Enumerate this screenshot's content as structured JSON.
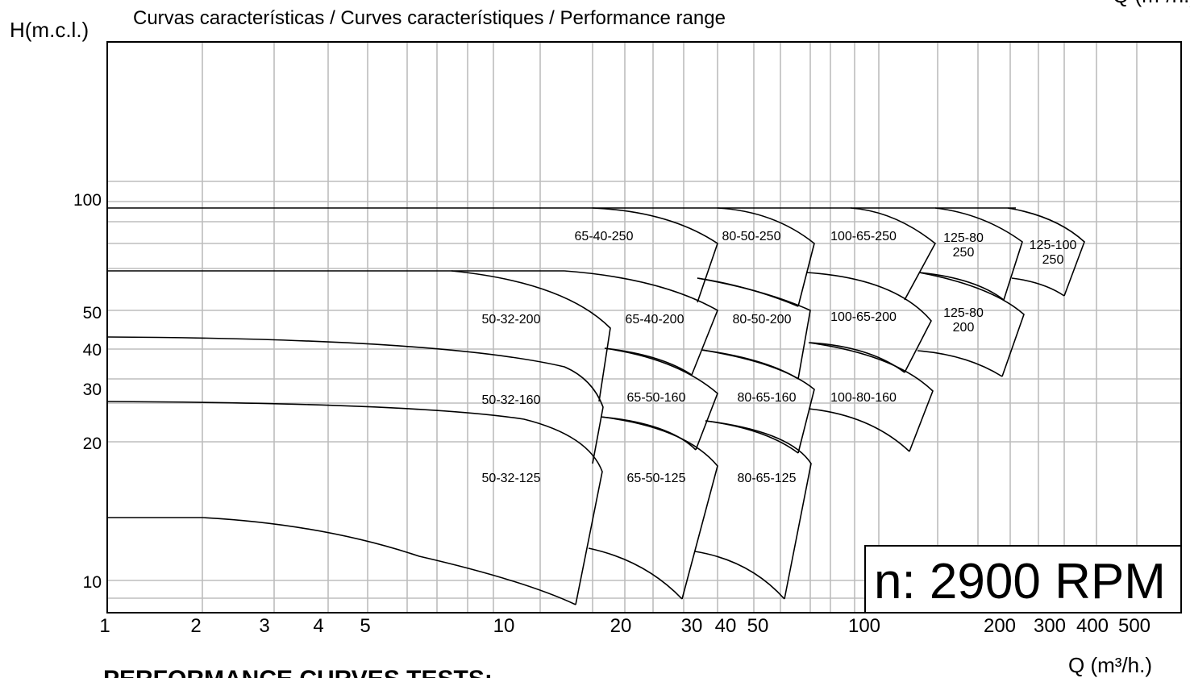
{
  "title": "Curvas características / Curves característiques / Performance range",
  "y_axis_label": "H(m.c.l.)",
  "x_axis_label": "Q (m³/h.)",
  "y_tick_labels": [
    "100",
    "50",
    "40",
    "30",
    "20",
    "10"
  ],
  "x_tick_labels": [
    "1",
    "2",
    "3",
    "4",
    "5",
    "10",
    "20",
    "30",
    "40",
    "50",
    "100",
    "200",
    "300",
    "400",
    "500"
  ],
  "regions": [
    [
      "65-40-250"
    ],
    [
      "80-50-250"
    ],
    [
      "100-65-250"
    ],
    [
      "125-80",
      "250"
    ],
    [
      "125-100",
      "250"
    ],
    [
      "50-32-200"
    ],
    [
      "65-40-200"
    ],
    [
      "80-50-200"
    ],
    [
      "100-65-200"
    ],
    [
      "125-80",
      "200"
    ],
    [
      "50-32-160"
    ],
    [
      "65-50-160"
    ],
    [
      "80-65-160"
    ],
    [
      "100-80-160"
    ],
    [
      "50-32-125"
    ],
    [
      "65-50-125"
    ],
    [
      "80-65-125"
    ]
  ],
  "speed_label": "n: 2900 RPM",
  "footer": "PERFORMANCE CURVES TESTS:"
}
